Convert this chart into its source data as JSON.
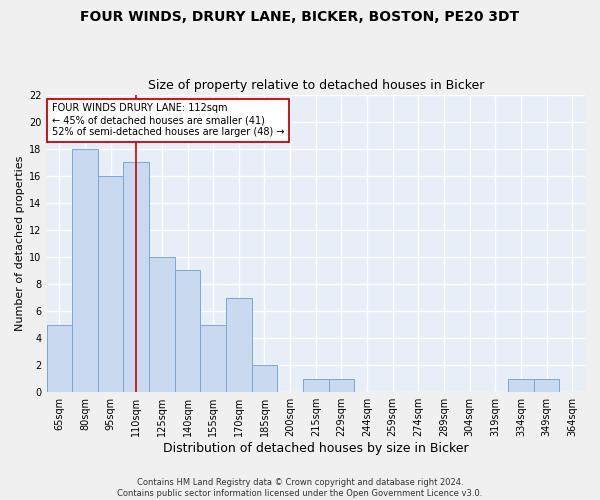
{
  "title1": "FOUR WINDS, DRURY LANE, BICKER, BOSTON, PE20 3DT",
  "title2": "Size of property relative to detached houses in Bicker",
  "xlabel": "Distribution of detached houses by size in Bicker",
  "ylabel": "Number of detached properties",
  "categories": [
    "65sqm",
    "80sqm",
    "95sqm",
    "110sqm",
    "125sqm",
    "140sqm",
    "155sqm",
    "170sqm",
    "185sqm",
    "200sqm",
    "215sqm",
    "229sqm",
    "244sqm",
    "259sqm",
    "274sqm",
    "289sqm",
    "304sqm",
    "319sqm",
    "334sqm",
    "349sqm",
    "364sqm"
  ],
  "values": [
    5,
    18,
    16,
    17,
    10,
    9,
    5,
    7,
    2,
    0,
    1,
    1,
    0,
    0,
    0,
    0,
    0,
    0,
    1,
    1,
    0
  ],
  "bar_color": "#c9d9f0",
  "bar_edge_color": "#7ba7d4",
  "vline_x": 3,
  "vline_color": "#cc0000",
  "annotation_text": "FOUR WINDS DRURY LANE: 112sqm\n← 45% of detached houses are smaller (41)\n52% of semi-detached houses are larger (48) →",
  "annotation_box_color": "#ffffff",
  "annotation_box_edge": "#cc0000",
  "ylim": [
    0,
    22
  ],
  "yticks": [
    0,
    2,
    4,
    6,
    8,
    10,
    12,
    14,
    16,
    18,
    20,
    22
  ],
  "footnote": "Contains HM Land Registry data © Crown copyright and database right 2024.\nContains public sector information licensed under the Open Government Licence v3.0.",
  "plot_bg_color": "#e8eef8",
  "fig_bg_color": "#f0f0f0",
  "grid_color": "#ffffff",
  "title1_fontsize": 10,
  "title2_fontsize": 9,
  "xlabel_fontsize": 9,
  "ylabel_fontsize": 8,
  "tick_fontsize": 7,
  "annot_fontsize": 7,
  "footnote_fontsize": 6
}
